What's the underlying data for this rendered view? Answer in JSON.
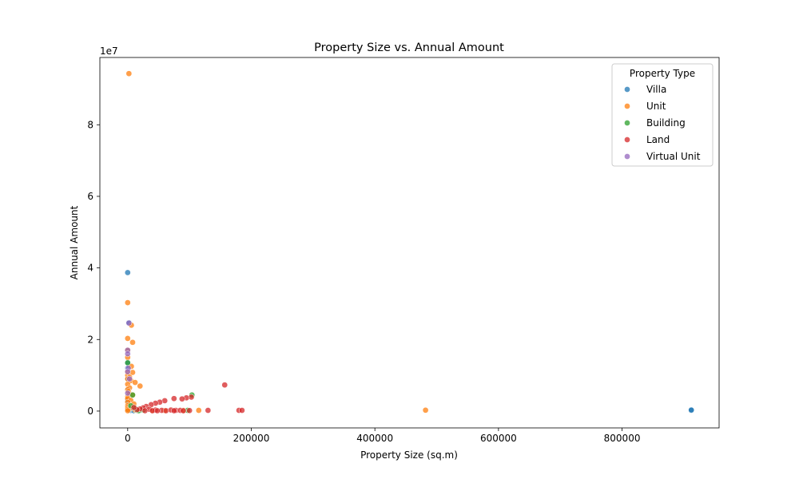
{
  "chart_data": {
    "type": "scatter",
    "title": "Property Size vs. Annual Amount",
    "xlabel": "Property Size (sq.m)",
    "ylabel": "Annual Amount",
    "y_offset_label": "1e7",
    "xlim": [
      -45000,
      957000
    ],
    "ylim": [
      -4700000,
      98800000
    ],
    "x_ticks": [
      0,
      200000,
      400000,
      600000,
      800000
    ],
    "x_tick_labels": [
      "0",
      "200000",
      "400000",
      "600000",
      "800000"
    ],
    "y_ticks": [
      0,
      20000000,
      40000000,
      60000000,
      80000000
    ],
    "y_tick_labels": [
      "0",
      "2",
      "4",
      "6",
      "8"
    ],
    "grid": false,
    "legend": {
      "title": "Property Type",
      "placement": "top-right"
    },
    "series": [
      {
        "name": "Villa",
        "color": "#1f77b4",
        "points": [
          [
            0,
            38700000
          ],
          [
            2000,
            24700000
          ],
          [
            0,
            12000000
          ],
          [
            0,
            13500000
          ],
          [
            500,
            9000000
          ],
          [
            1000,
            6000000
          ],
          [
            0,
            3000000
          ],
          [
            0,
            500000
          ],
          [
            5000,
            200000
          ],
          [
            10000,
            100000
          ],
          [
            2000,
            300000
          ],
          [
            912000,
            200000
          ],
          [
            912000,
            300000
          ]
        ]
      },
      {
        "name": "Unit",
        "color": "#ff7f0e",
        "points": [
          [
            2000,
            94300000
          ],
          [
            0,
            30300000
          ],
          [
            6000,
            24000000
          ],
          [
            0,
            20300000
          ],
          [
            8000,
            19200000
          ],
          [
            0,
            17000000
          ],
          [
            0,
            15000000
          ],
          [
            6000,
            12500000
          ],
          [
            0,
            11000000
          ],
          [
            8000,
            10800000
          ],
          [
            0,
            10000000
          ],
          [
            3000,
            9500000
          ],
          [
            0,
            9000000
          ],
          [
            5000,
            8500000
          ],
          [
            12000,
            8000000
          ],
          [
            0,
            7500000
          ],
          [
            20000,
            7000000
          ],
          [
            3000,
            6500000
          ],
          [
            0,
            6000000
          ],
          [
            1000,
            5500000
          ],
          [
            3000,
            4800000
          ],
          [
            8000,
            4500000
          ],
          [
            0,
            4000000
          ],
          [
            0,
            3500000
          ],
          [
            5000,
            3000000
          ],
          [
            0,
            2500000
          ],
          [
            10000,
            2000000
          ],
          [
            0,
            1500000
          ],
          [
            0,
            1000000
          ],
          [
            3000,
            700000
          ],
          [
            0,
            500000
          ],
          [
            12000,
            300000
          ],
          [
            0,
            100000
          ],
          [
            40000,
            200000
          ],
          [
            60000,
            150000
          ],
          [
            90000,
            200000
          ],
          [
            115000,
            200000
          ],
          [
            482000,
            250000
          ]
        ]
      },
      {
        "name": "Building",
        "color": "#2ca02c",
        "points": [
          [
            0,
            13500000
          ],
          [
            8000,
            4500000
          ],
          [
            104000,
            4500000
          ],
          [
            12000,
            800000
          ],
          [
            15000,
            200000
          ],
          [
            18000,
            100000
          ],
          [
            25000,
            300000
          ],
          [
            97000,
            200000
          ],
          [
            5000,
            1500000
          ]
        ]
      },
      {
        "name": "Land",
        "color": "#d62728",
        "points": [
          [
            157000,
            7300000
          ],
          [
            103000,
            3900000
          ],
          [
            95000,
            3700000
          ],
          [
            88000,
            3400000
          ],
          [
            75000,
            3500000
          ],
          [
            60000,
            2900000
          ],
          [
            52000,
            2500000
          ],
          [
            45000,
            2200000
          ],
          [
            38000,
            1800000
          ],
          [
            30000,
            1300000
          ],
          [
            25000,
            900000
          ],
          [
            20000,
            600000
          ],
          [
            15000,
            400000
          ],
          [
            10000,
            1000000
          ],
          [
            35000,
            500000
          ],
          [
            45000,
            300000
          ],
          [
            55000,
            200000
          ],
          [
            62000,
            100000
          ],
          [
            70000,
            300000
          ],
          [
            78000,
            200000
          ],
          [
            85000,
            200000
          ],
          [
            90000,
            100000
          ],
          [
            100000,
            150000
          ],
          [
            130000,
            200000
          ],
          [
            180000,
            200000
          ],
          [
            185000,
            200000
          ],
          [
            28000,
            100000
          ],
          [
            40000,
            100000
          ],
          [
            48000,
            100000
          ],
          [
            75000,
            100000
          ]
        ]
      },
      {
        "name": "Virtual Unit",
        "color": "#9467bd",
        "points": [
          [
            2000,
            24600000
          ],
          [
            0,
            17000000
          ],
          [
            0,
            16000000
          ],
          [
            1000,
            12000000
          ],
          [
            0,
            11000000
          ],
          [
            3000,
            9000000
          ],
          [
            0,
            5000000
          ]
        ]
      }
    ]
  }
}
